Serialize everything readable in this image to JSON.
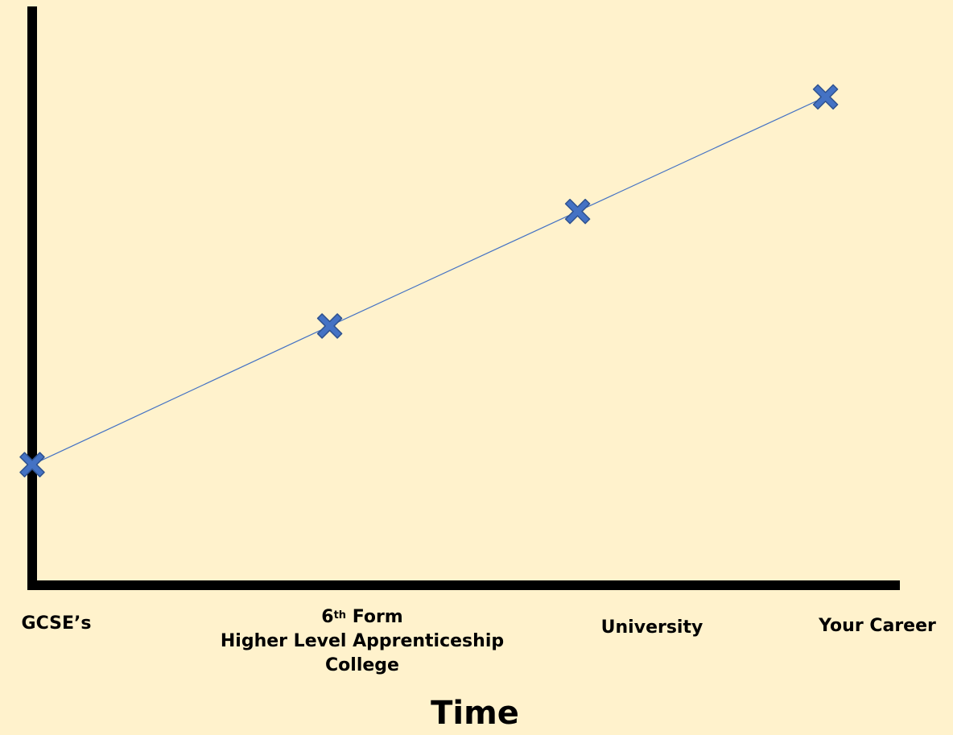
{
  "chart_data": {
    "type": "line",
    "title": "",
    "xlabel": "Time",
    "ylabel": "",
    "categories": [
      {
        "line1": "GCSE’s"
      },
      {
        "line1_main": "6",
        "line1_sup": "th",
        "line1_rest": " Form",
        "line2": "Higher Level Apprenticeship",
        "line3": "College"
      },
      {
        "line1": "University"
      },
      {
        "line1": "Your Career"
      }
    ],
    "x": [
      0,
      1.2,
      2.2,
      3.2
    ],
    "y": [
      1,
      2.15,
      3.1,
      4.05
    ],
    "xlim": [
      0,
      3.5
    ],
    "ylim": [
      0,
      4.8
    ],
    "grid": false,
    "legend": "none",
    "colors": {
      "background": "#fff2cc",
      "axis": "#000000",
      "line": "#4472c4",
      "marker_fill": "#4472c4",
      "marker_stroke": "#2f528f"
    }
  }
}
